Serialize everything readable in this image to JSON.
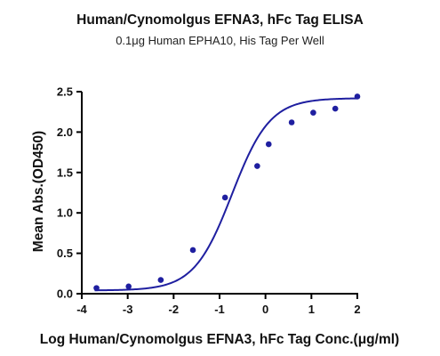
{
  "chart_data": {
    "type": "scatter",
    "title": "Human/Cynomolgus EFNA3, hFc Tag ELISA",
    "subtitle": "0.1μg Human EPHA10, His Tag Per Well",
    "xlabel": "Log Human/Cynomolgus EFNA3, hFc Tag Conc.(μg/ml)",
    "ylabel": "Mean Abs.(OD450)",
    "xlim": [
      -4,
      2
    ],
    "ylim": [
      0,
      2.5
    ],
    "x_ticks": [
      "-4",
      "-3",
      "-2",
      "-1",
      "0",
      "1",
      "2"
    ],
    "y_ticks": [
      "0.0",
      "0.5",
      "1.0",
      "1.5",
      "2.0",
      "2.5"
    ],
    "grid": false,
    "series": [
      {
        "color": "#1f1fa0",
        "x": [
          -3.68,
          -2.98,
          -2.28,
          -1.58,
          -0.88,
          -0.18,
          0.07,
          0.57,
          1.04,
          1.52,
          2.0
        ],
        "y": [
          0.07,
          0.09,
          0.17,
          0.54,
          1.19,
          1.58,
          1.85,
          2.12,
          2.24,
          2.29,
          2.44
        ],
        "fit": {
          "model": "4PL",
          "bottom": 0.04,
          "top": 2.42,
          "logEC50": -0.73,
          "hill": 1.05
        }
      }
    ]
  }
}
